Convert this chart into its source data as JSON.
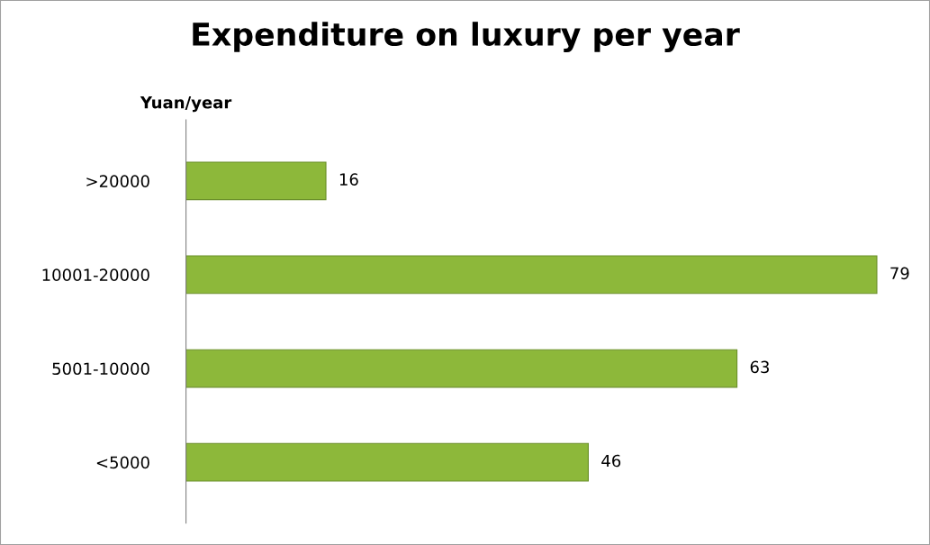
{
  "chart_data": {
    "type": "bar",
    "orientation": "horizontal",
    "title": "Expenditure on luxury per year",
    "ylabel": "Yuan/year",
    "categories": [
      ">20000",
      "10001-20000",
      "5001-10000",
      "<5000"
    ],
    "values": [
      16,
      79,
      63,
      46
    ],
    "color": "#8db83a",
    "data_labels": true,
    "tick_labels": "y",
    "grid": false,
    "legend": false
  }
}
